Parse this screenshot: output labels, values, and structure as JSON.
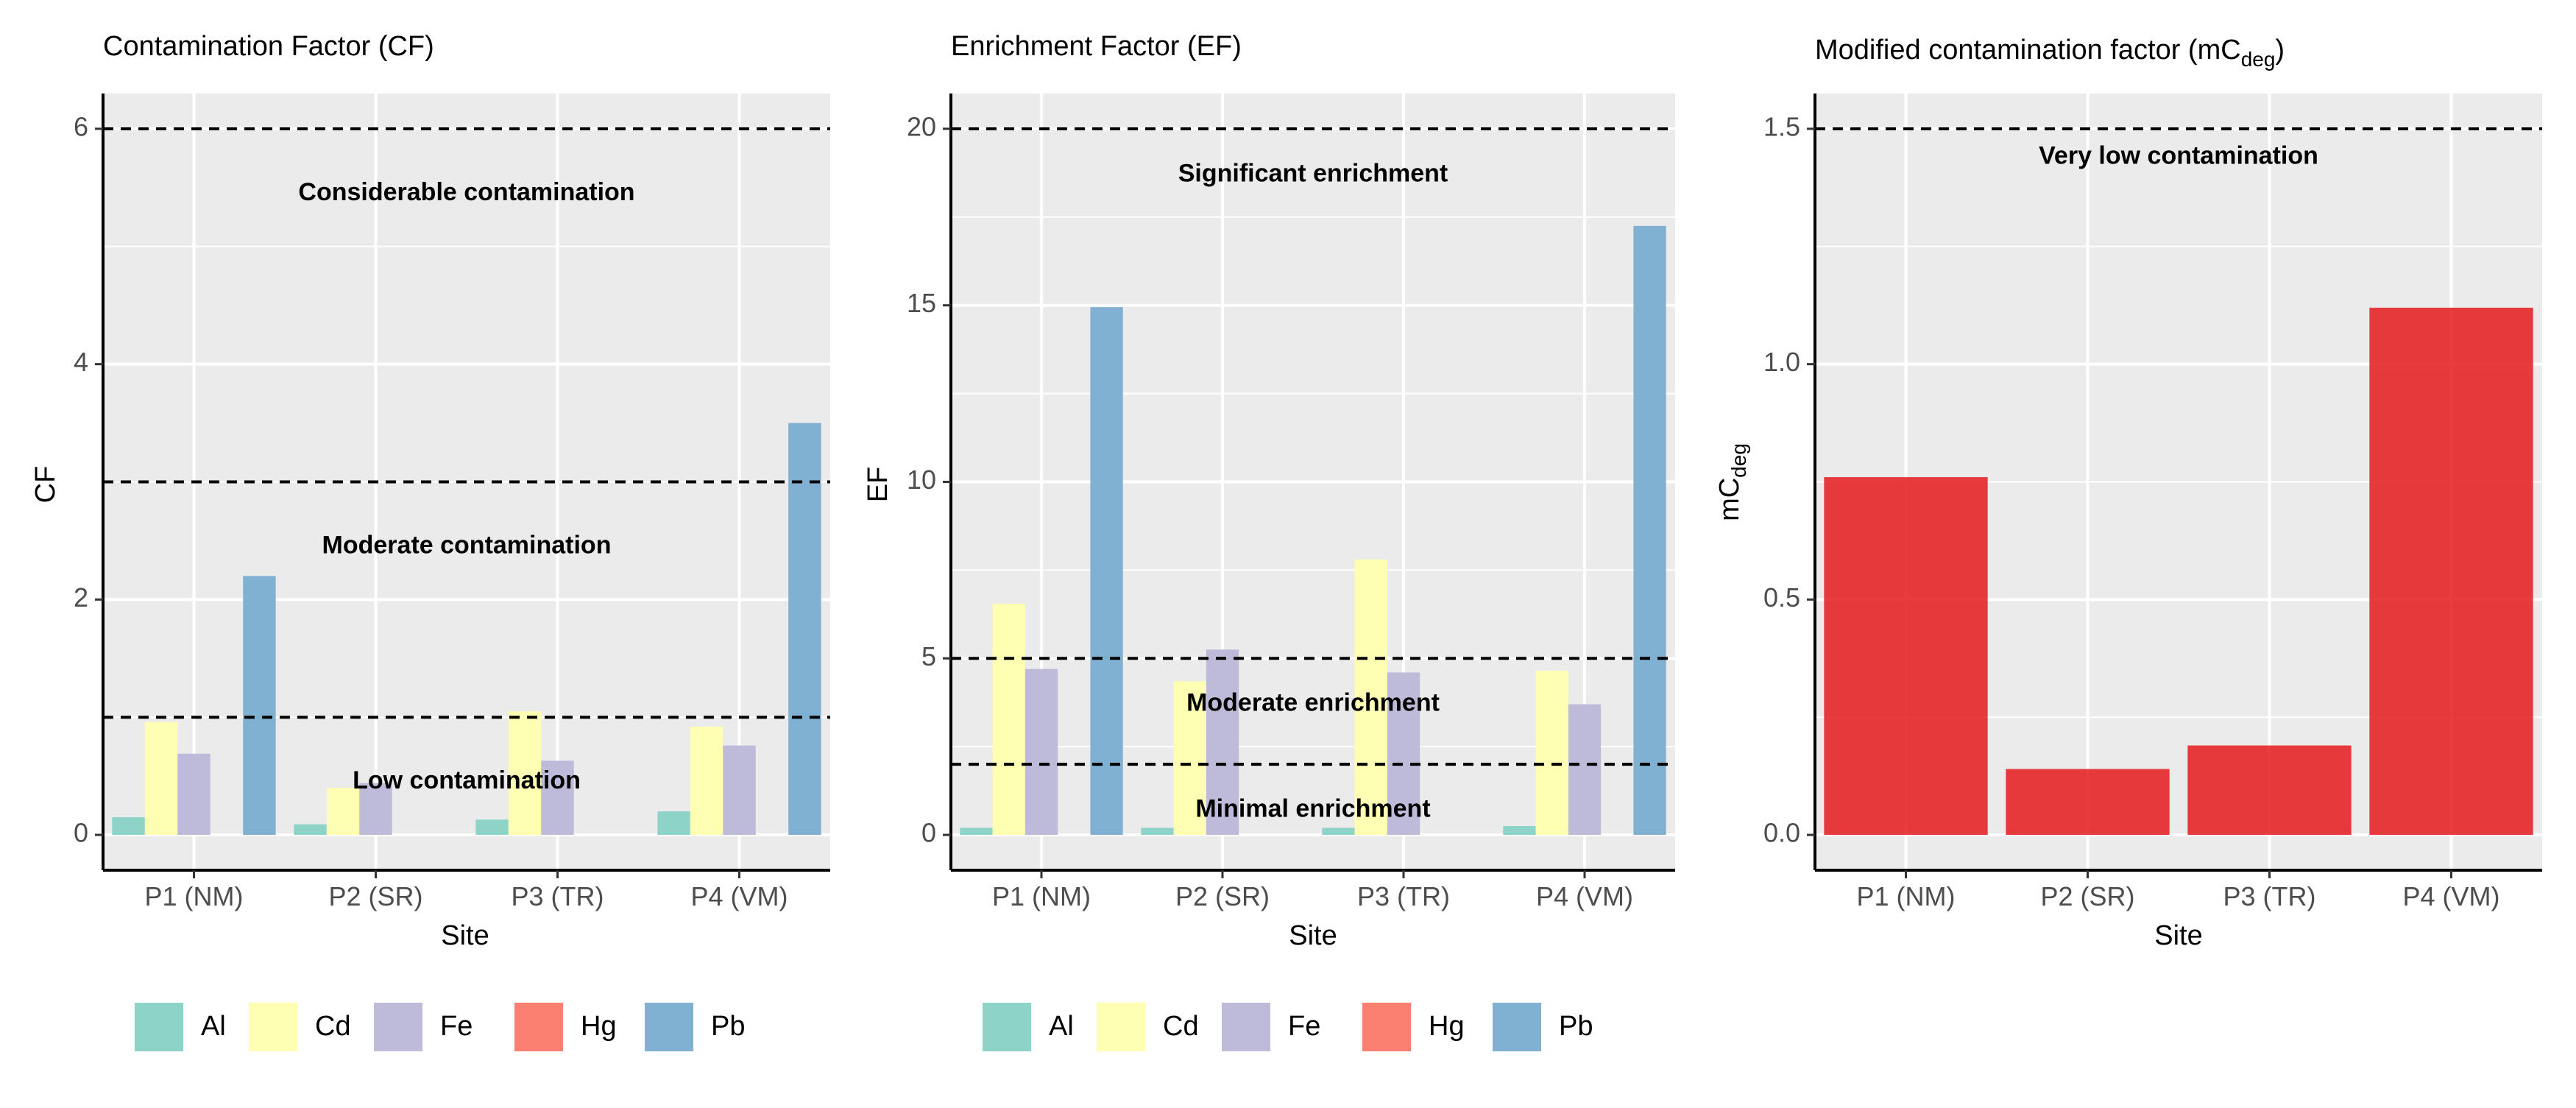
{
  "colors": {
    "Al": "#8DD3C7",
    "Cd": "#FFFFB3",
    "Fe": "#BEBADA",
    "Hg": "#FB8072",
    "Pb": "#80B1D3",
    "mcdeg_bar": "#E41A1C",
    "panel_bg": "#EBEBEB",
    "grid": "#FFFFFF"
  },
  "chart_data": [
    {
      "type": "bar",
      "title": "Contamination Factor (CF)",
      "xlabel": "Site",
      "ylabel": "CF",
      "categories": [
        "P1 (NM)",
        "P2 (SR)",
        "P3 (TR)",
        "P4 (VM)"
      ],
      "ylim": [
        -0.3,
        6.3
      ],
      "yticks": [
        0,
        2,
        4,
        6
      ],
      "grid": true,
      "legend": "bottom",
      "series": [
        {
          "name": "Al",
          "values": [
            0.15,
            0.09,
            0.13,
            0.2
          ]
        },
        {
          "name": "Cd",
          "values": [
            0.96,
            0.4,
            1.05,
            0.92
          ]
        },
        {
          "name": "Fe",
          "values": [
            0.69,
            0.44,
            0.63,
            0.76
          ]
        },
        {
          "name": "Hg",
          "values": [
            null,
            null,
            null,
            null
          ]
        },
        {
          "name": "Pb",
          "values": [
            2.2,
            null,
            null,
            3.5
          ]
        }
      ],
      "reference_lines": [
        1,
        3,
        6
      ],
      "annotations": [
        {
          "text": "Considerable contamination",
          "y": 5.45
        },
        {
          "text": "Moderate contamination",
          "y": 2.45
        },
        {
          "text": "Low contamination",
          "y": 0.45
        }
      ]
    },
    {
      "type": "bar",
      "title": "Enrichment Factor (EF)",
      "xlabel": "Site",
      "ylabel": "EF",
      "categories": [
        "P1 (NM)",
        "P2 (SR)",
        "P3 (TR)",
        "P4 (VM)"
      ],
      "ylim": [
        -1,
        21
      ],
      "yticks": [
        0,
        5,
        10,
        15,
        20
      ],
      "grid": true,
      "legend": "bottom",
      "series": [
        {
          "name": "Al",
          "values": [
            0.2,
            0.2,
            0.2,
            0.25
          ]
        },
        {
          "name": "Cd",
          "values": [
            6.55,
            4.35,
            7.8,
            4.65
          ]
        },
        {
          "name": "Fe",
          "values": [
            4.7,
            5.25,
            4.6,
            3.7
          ]
        },
        {
          "name": "Hg",
          "values": [
            null,
            null,
            null,
            null
          ]
        },
        {
          "name": "Pb",
          "values": [
            14.95,
            null,
            null,
            17.25
          ]
        }
      ],
      "reference_lines": [
        2,
        5,
        20
      ],
      "annotations": [
        {
          "text": "Significant enrichment",
          "y": 18.7
        },
        {
          "text": "Moderate enrichment",
          "y": 3.7
        },
        {
          "text": "Minimal enrichment",
          "y": 0.7
        }
      ]
    },
    {
      "type": "bar",
      "title": "Modified contamination factor (mC",
      "title_sub": "deg",
      "title_end": ")",
      "xlabel": "Site",
      "ylabel": "mC",
      "ylabel_sub": "deg",
      "categories": [
        "P1 (NM)",
        "P2 (SR)",
        "P3 (TR)",
        "P4 (VM)"
      ],
      "values": [
        0.76,
        0.14,
        0.19,
        1.12
      ],
      "ylim": [
        -0.075,
        1.575
      ],
      "yticks": [
        0.0,
        0.5,
        1.0,
        1.5
      ],
      "ytick_labels": [
        "0.0",
        "0.5",
        "1.0",
        "1.5"
      ],
      "grid": true,
      "reference_lines": [
        1.5
      ],
      "annotations": [
        {
          "text": "Very low contamination",
          "y": 1.44
        }
      ]
    }
  ],
  "legend_items": [
    "Al",
    "Cd",
    "Fe",
    "Hg",
    "Pb"
  ]
}
